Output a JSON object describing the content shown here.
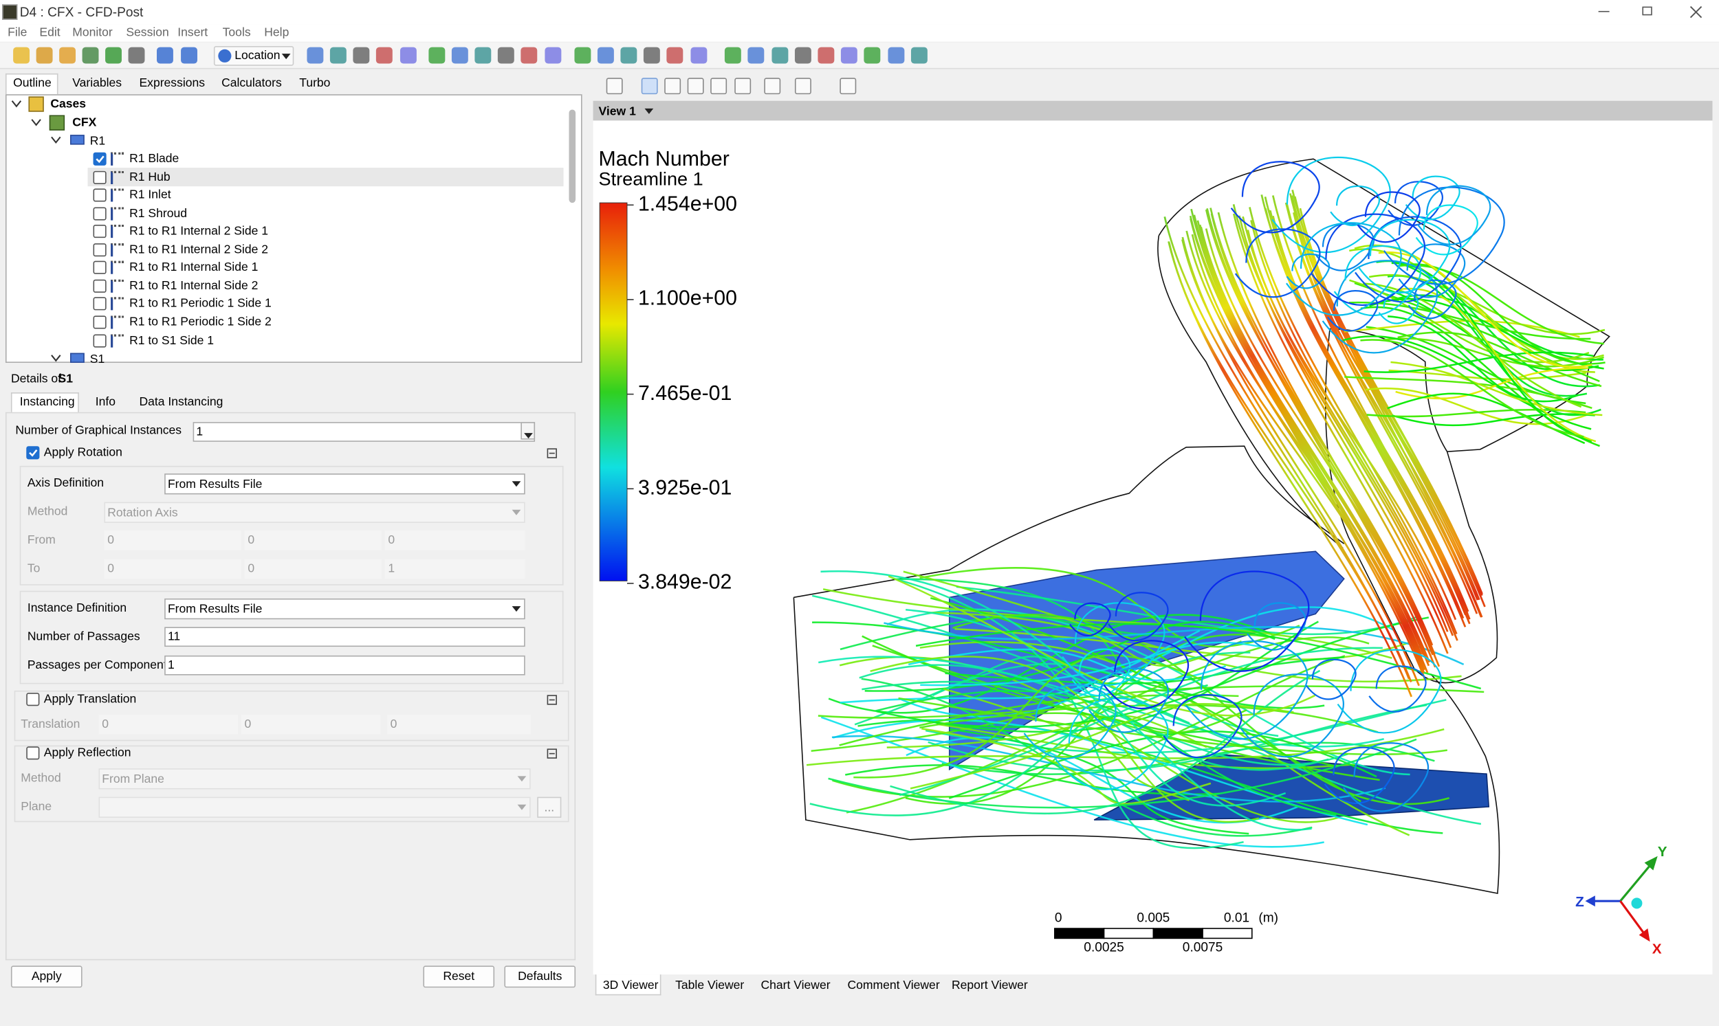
{
  "title_bar": {
    "title": "D4 : CFX - CFD-Post"
  },
  "menu": [
    "File",
    "Edit",
    "Monitor",
    "Session",
    "Insert",
    "Tools",
    "Help"
  ],
  "toolbar": {
    "location": "Location"
  },
  "left_tabs": [
    "Outline",
    "Variables",
    "Expressions",
    "Calculators",
    "Turbo"
  ],
  "tree": {
    "cases": "Cases",
    "cfx": "CFX",
    "r1": "R1",
    "items": [
      {
        "label": "R1 Blade",
        "checked": true
      },
      {
        "label": "R1 Hub",
        "checked": false
      },
      {
        "label": "R1 Inlet",
        "checked": false
      },
      {
        "label": "R1 Shroud",
        "checked": false
      },
      {
        "label": "R1 to R1 Internal 2 Side 1",
        "checked": false
      },
      {
        "label": "R1 to R1 Internal 2 Side 2",
        "checked": false
      },
      {
        "label": "R1 to R1 Internal Side 1",
        "checked": false
      },
      {
        "label": "R1 to R1 Internal Side 2",
        "checked": false
      },
      {
        "label": "R1 to R1 Periodic 1 Side 1",
        "checked": false
      },
      {
        "label": "R1 to R1 Periodic 1 Side 2",
        "checked": false
      },
      {
        "label": "R1 to S1 Side 1",
        "checked": false
      }
    ],
    "s1": "S1"
  },
  "details": {
    "label": "Details of",
    "object": "S1",
    "tabs": [
      "Instancing",
      "Info",
      "Data Instancing"
    ],
    "graphical_instances": {
      "label": "Number of Graphical Instances",
      "value": "1"
    },
    "rotation": {
      "label": "Apply Rotation",
      "checked": true,
      "axis_definition": {
        "label": "Axis Definition",
        "value": "From Results File"
      },
      "method": {
        "label": "Method",
        "value": "Rotation Axis"
      },
      "from": {
        "label": "From",
        "values": [
          "0",
          "0",
          "0"
        ]
      },
      "to": {
        "label": "To",
        "values": [
          "0",
          "0",
          "1"
        ]
      },
      "instance_definition": {
        "label": "Instance Definition",
        "value": "From Results File"
      },
      "passages": {
        "label": "Number of Passages",
        "value": "11"
      },
      "passages_per_component": {
        "label": "Passages per Component",
        "value": "1"
      }
    },
    "translation": {
      "label": "Apply Translation",
      "checked": false,
      "field": {
        "label": "Translation",
        "values": [
          "0",
          "0",
          "0"
        ]
      }
    },
    "reflection": {
      "label": "Apply Reflection",
      "checked": false,
      "method": {
        "label": "Method",
        "value": "From Plane"
      },
      "plane": {
        "label": "Plane"
      },
      "browse": "..."
    },
    "buttons": [
      "Apply",
      "Reset",
      "Defaults"
    ]
  },
  "viewer": {
    "view": "View 1",
    "legend": {
      "title": "Mach Number",
      "subtitle": "Streamline 1",
      "labels": [
        "1.454e+00",
        "1.100e+00",
        "7.465e-01",
        "3.925e-01",
        "3.849e-02"
      ]
    },
    "scale": {
      "top": [
        "0",
        "0.005",
        "0.01"
      ],
      "unit": "(m)",
      "bottom": [
        "0.0025",
        "0.0075"
      ]
    },
    "axes": {
      "x": "X",
      "y": "Y",
      "z": "Z"
    },
    "tabs": [
      "3D Viewer",
      "Table Viewer",
      "Chart Viewer",
      "Comment Viewer",
      "Report Viewer"
    ]
  }
}
